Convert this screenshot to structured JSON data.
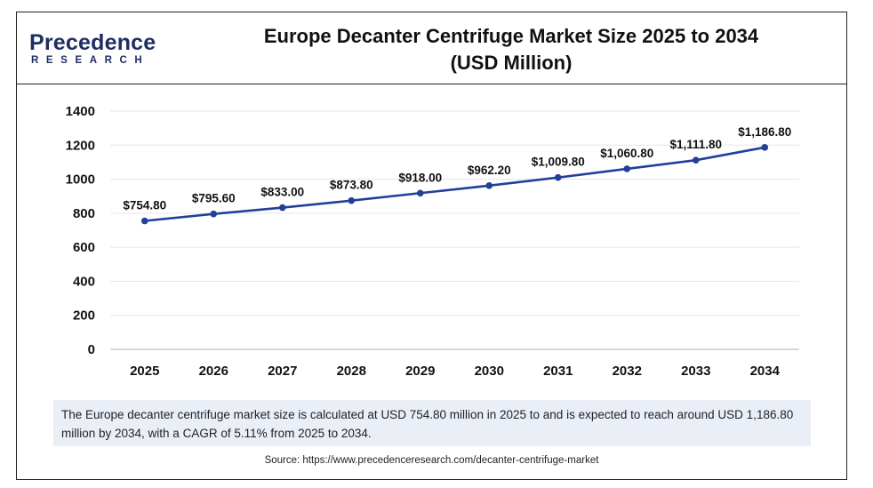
{
  "brand": {
    "name": "Precedence",
    "sub": "RESEARCH"
  },
  "title_line1": "Europe Decanter Centrifuge Market Size 2025 to 2034",
  "title_line2": "(USD Million)",
  "note_text": "The Europe decanter centrifuge market size is calculated at USD 754.80 million in 2025 to and is expected to reach around USD 1,186.80 million by 2034, with a CAGR of 5.11% from 2025 to 2034.",
  "source_text": "Source: https://www.precedenceresearch.com/decanter-centrifuge-market",
  "colors": {
    "line": "#22409a",
    "brand": "#1e2e63",
    "accent": "#2aa9df",
    "note_bg": "#e9eef7"
  },
  "chart_data": {
    "type": "line",
    "title": "Europe Decanter Centrifuge Market Size 2025 to 2034 (USD Million)",
    "xlabel": "",
    "ylabel": "",
    "ylim": [
      0,
      1400
    ],
    "yticks": [
      0,
      200,
      400,
      600,
      800,
      1000,
      1200,
      1400
    ],
    "grid": true,
    "legend": "none",
    "categories": [
      "2025",
      "2026",
      "2027",
      "2028",
      "2029",
      "2030",
      "2031",
      "2032",
      "2033",
      "2034"
    ],
    "values": [
      754.8,
      795.6,
      833.0,
      873.8,
      918.0,
      962.2,
      1009.8,
      1060.8,
      1111.8,
      1186.8
    ],
    "data_labels": [
      "$754.80",
      "$795.60",
      "$833.00",
      "$873.80",
      "$918.00",
      "$962.20",
      "$1,009.80",
      "$1,060.80",
      "$1,111.80",
      "$1,186.80"
    ]
  }
}
